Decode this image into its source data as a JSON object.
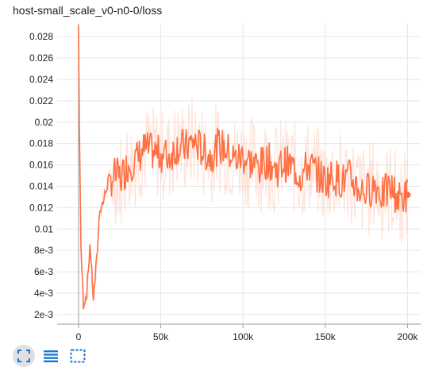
{
  "card": {
    "title": "host-small_scale_v0-n0-0/loss"
  },
  "colors": {
    "series": "#ff7043",
    "series_raw": "#ffccbc",
    "grid": "#e6e6e6",
    "axis": "#9e9e9e"
  },
  "toolbar": {
    "buttons": [
      {
        "name": "fit-domain-button",
        "icon": "fullscreen-icon",
        "active": true
      },
      {
        "name": "toggle-log-scale-button",
        "icon": "list-icon",
        "active": false
      },
      {
        "name": "select-region-button",
        "icon": "dashed-box-icon",
        "active": false
      }
    ]
  },
  "chart_data": {
    "type": "line",
    "x_tick_labels": [
      "0",
      "50k",
      "100k",
      "150k",
      "200k"
    ],
    "x_ticks": [
      0,
      50000,
      100000,
      150000,
      200000
    ],
    "y_tick_labels": [
      "2e-3",
      "4e-3",
      "6e-3",
      "8e-3",
      "0.01",
      "0.012",
      "0.014",
      "0.016",
      "0.018",
      "0.02",
      "0.022",
      "0.024",
      "0.026",
      "0.028"
    ],
    "y_ticks": [
      0.002,
      0.004,
      0.006,
      0.008,
      0.01,
      0.012,
      0.014,
      0.016,
      0.018,
      0.02,
      0.022,
      0.024,
      0.026,
      0.028
    ],
    "xlim": [
      -13000,
      208000
    ],
    "ylim": [
      0.0011,
      0.0292
    ],
    "grid": true,
    "series": [
      {
        "smoothed": true,
        "x": [
          0,
          500,
          1500,
          3000,
          5000,
          7000,
          9000,
          11000,
          13000,
          15000,
          18000,
          22000,
          26000,
          30000,
          35000,
          40000,
          45000,
          50000,
          55000,
          60000,
          65000,
          70000,
          75000,
          80000,
          85000,
          90000,
          95000,
          100000,
          105000,
          110000,
          115000,
          120000,
          125000,
          130000,
          135000,
          140000,
          145000,
          150000,
          155000,
          160000,
          165000,
          170000,
          175000,
          180000,
          185000,
          190000,
          195000,
          200000
        ],
        "y": [
          0.029,
          0.02,
          0.008,
          0.003,
          0.004,
          0.0085,
          0.0035,
          0.007,
          0.012,
          0.0125,
          0.0145,
          0.015,
          0.0148,
          0.016,
          0.0165,
          0.0175,
          0.0172,
          0.017,
          0.0168,
          0.0178,
          0.0176,
          0.0182,
          0.0174,
          0.0168,
          0.0178,
          0.0175,
          0.0165,
          0.0168,
          0.0162,
          0.0158,
          0.0165,
          0.0155,
          0.0162,
          0.0158,
          0.015,
          0.016,
          0.0152,
          0.0145,
          0.015,
          0.0145,
          0.0148,
          0.0138,
          0.0135,
          0.0142,
          0.0132,
          0.0138,
          0.0128,
          0.0132
        ]
      }
    ]
  }
}
